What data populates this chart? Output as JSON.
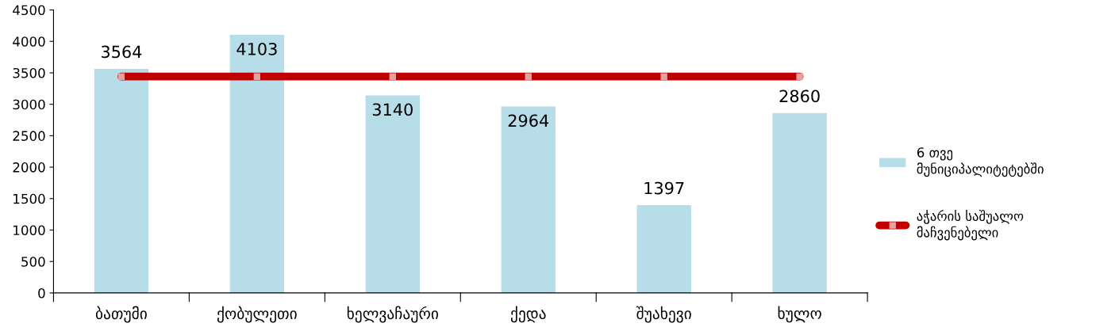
{
  "chart_data": {
    "type": "bar",
    "categories": [
      "ბათუმი",
      "ქობულეთი",
      "ხელვაჩაური",
      "ქედა",
      "შუახევი",
      "ხულო"
    ],
    "series": [
      {
        "name": "6 თვე მუნიციპალიტეტებში",
        "color": "#b7dde8",
        "values": [
          3564,
          4103,
          3140,
          2964,
          1397,
          2860
        ],
        "data_labels": true
      },
      {
        "name": "აჭარის საშუალო მაჩვენებელი",
        "type": "line",
        "color": "#c00000",
        "values": [
          3440,
          3440,
          3440,
          3440,
          3440,
          3440
        ],
        "marker": "square"
      }
    ],
    "ylim": [
      0,
      4500
    ],
    "yticks": [
      0,
      500,
      1000,
      1500,
      2000,
      2500,
      3000,
      3500,
      4000,
      4500
    ],
    "grid": false,
    "legend": "right"
  }
}
